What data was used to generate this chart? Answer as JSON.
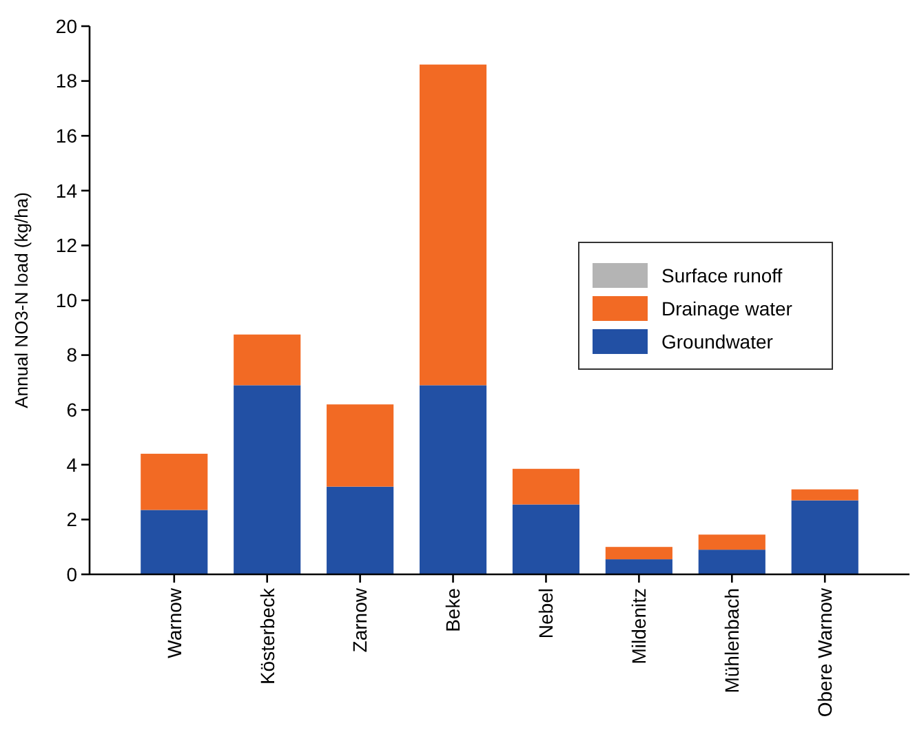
{
  "chart_data": {
    "type": "bar",
    "stacked": true,
    "ylabel": "Annual NO3-N load (kg/ha)",
    "categories": [
      "Warnow",
      "Kösterbeck",
      "Zarnow",
      "Beke",
      "Nebel",
      "Mildenitz",
      "Mühlenbach",
      "Obere Warnow"
    ],
    "series": [
      {
        "name": "Groundwater",
        "color": "#2250a4",
        "values": [
          2.35,
          6.9,
          3.2,
          6.9,
          2.55,
          0.55,
          0.9,
          2.7
        ]
      },
      {
        "name": "Drainage water",
        "color": "#f26a24",
        "values": [
          2.05,
          1.85,
          3.0,
          11.7,
          1.3,
          0.45,
          0.55,
          0.4
        ]
      },
      {
        "name": "Surface runoff",
        "color": "#b4b4b4",
        "values": [
          0,
          0,
          null,
          0,
          0,
          0,
          0,
          0
        ]
      }
    ],
    "ylim": [
      0,
      20
    ],
    "yticks": [
      0,
      2,
      4,
      6,
      8,
      10,
      12,
      14,
      16,
      18,
      20
    ],
    "legend": "right",
    "grid": false
  }
}
